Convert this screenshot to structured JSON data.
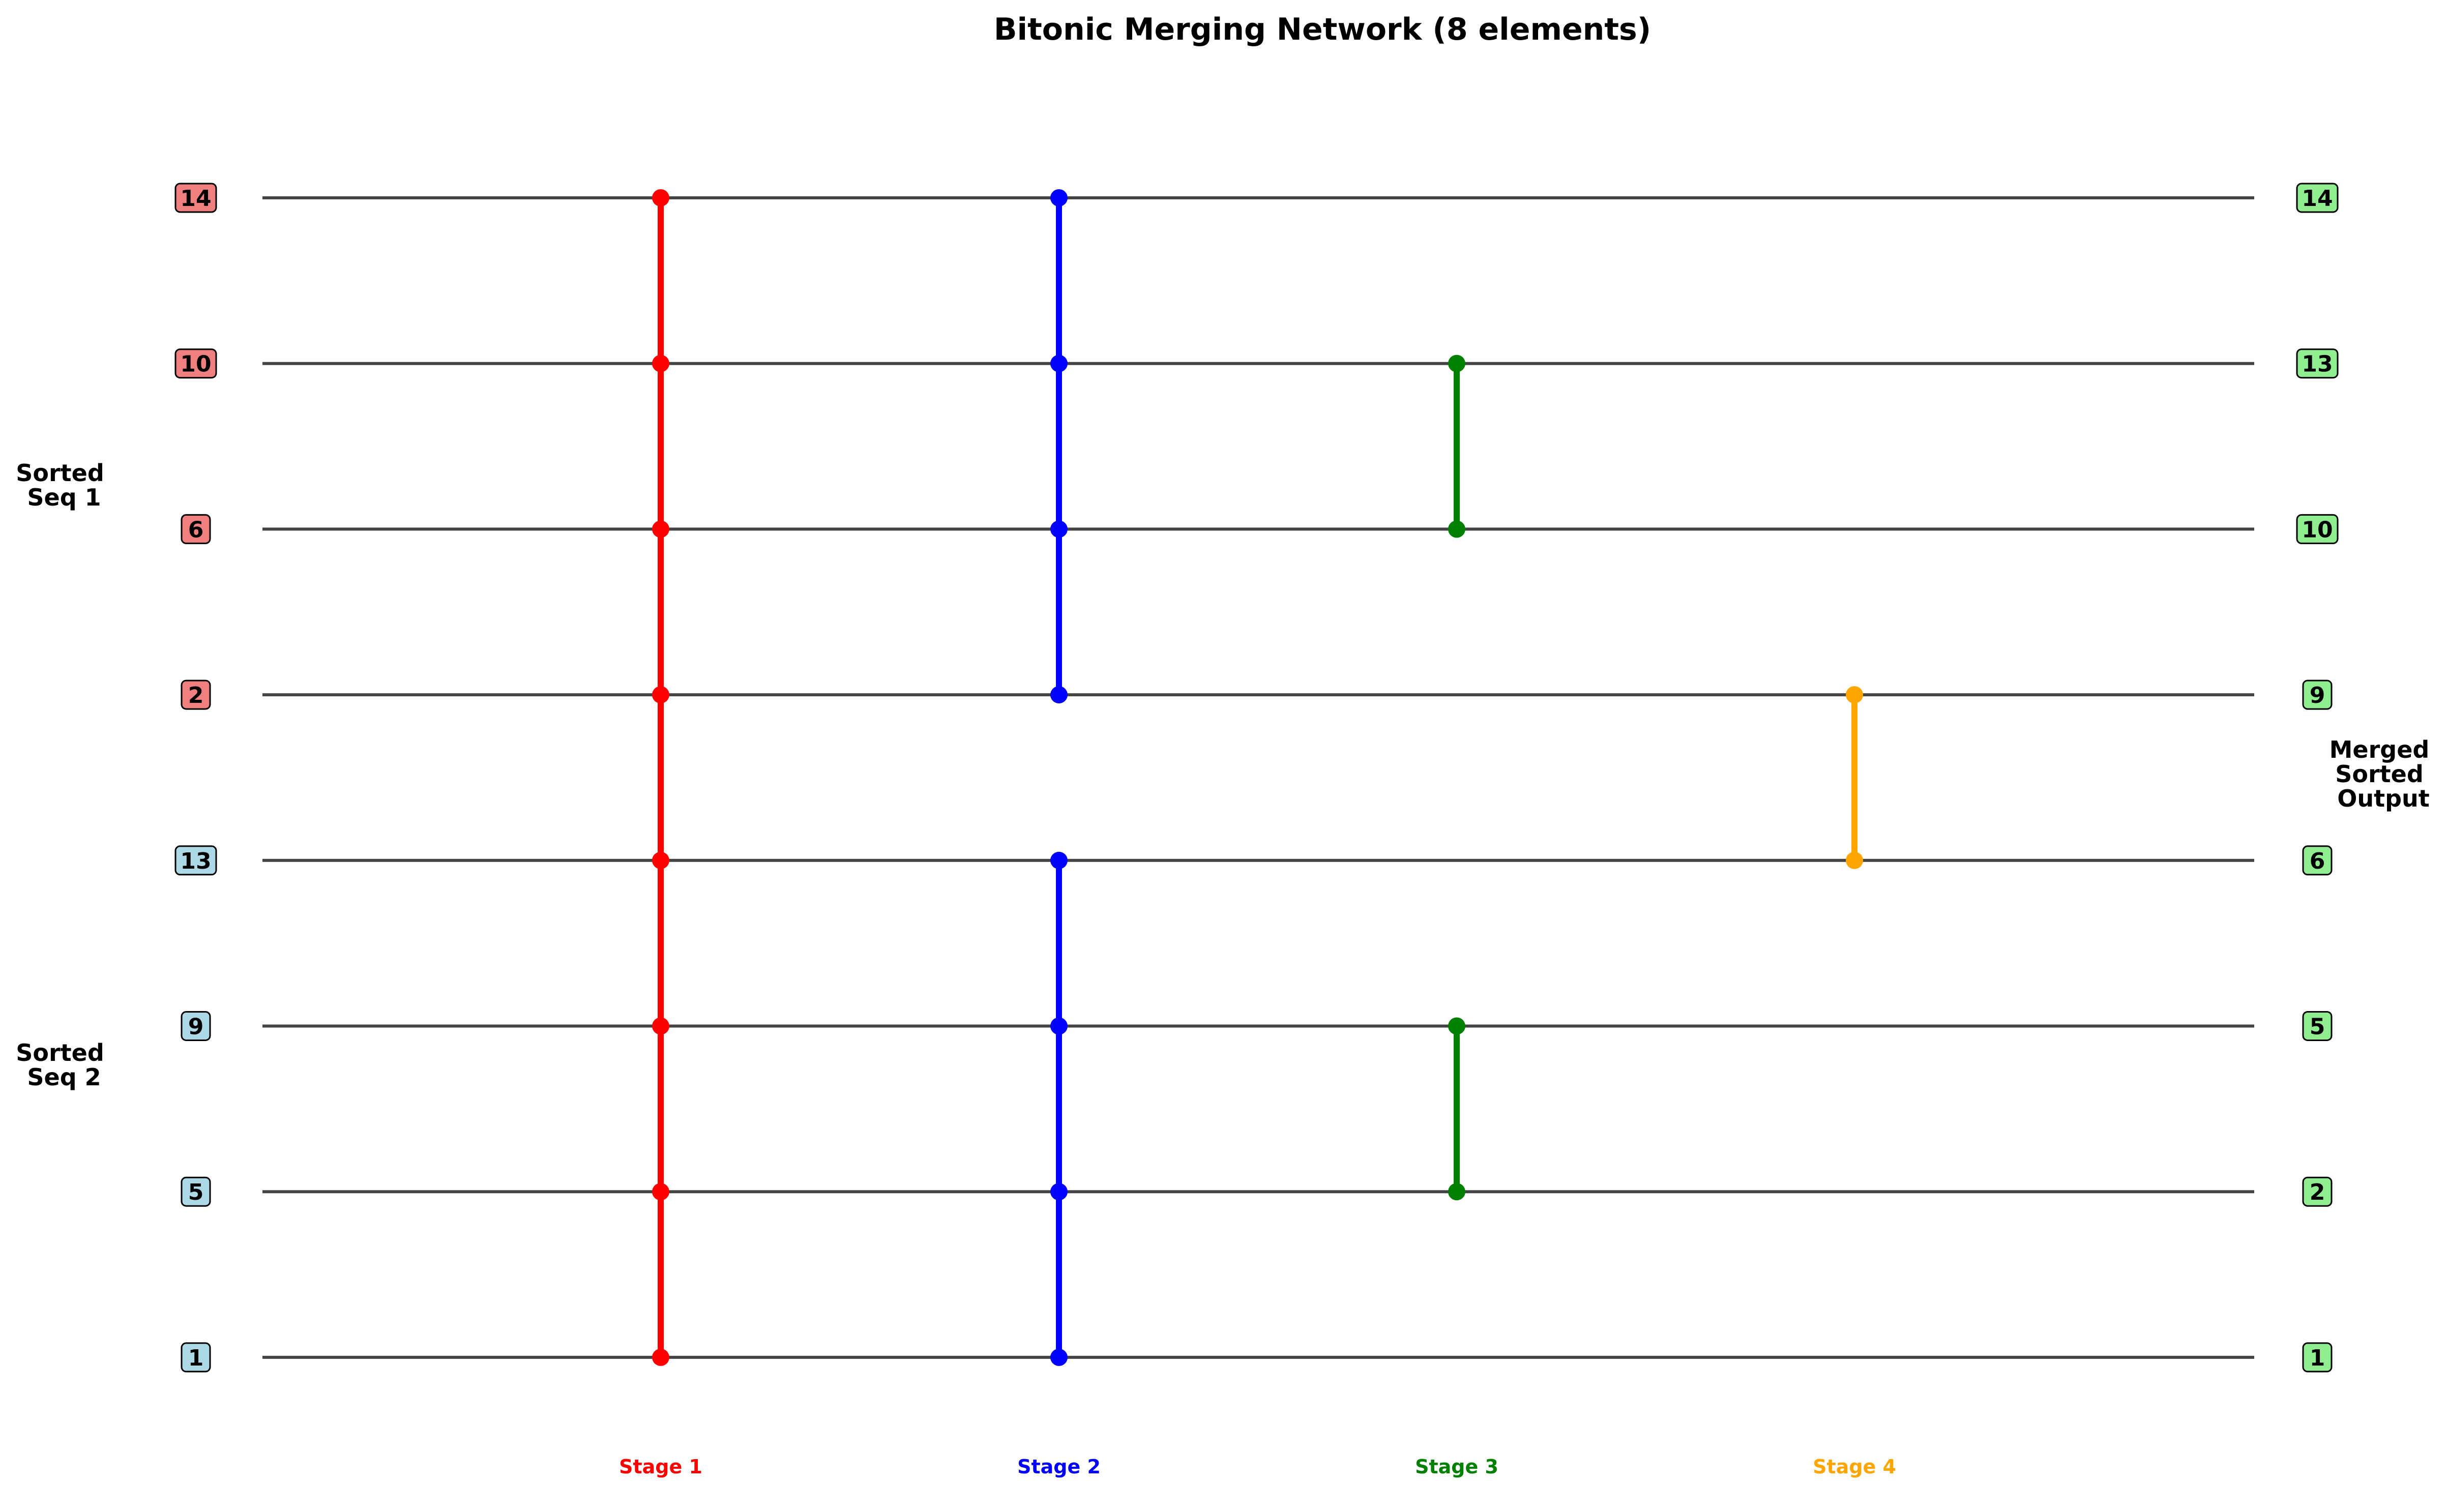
{
  "title": "Bitonic Merging Network (8 elements)",
  "input_groups": [
    {
      "label_lines": [
        "Sorted",
        "Seq 1"
      ]
    },
    {
      "label_lines": [
        "Sorted",
        "Seq 2"
      ]
    }
  ],
  "output_group": {
    "label_lines": [
      "Merged",
      "Sorted",
      "Output"
    ]
  },
  "inputs": [
    {
      "value": "14",
      "group": "seq1"
    },
    {
      "value": "10",
      "group": "seq1"
    },
    {
      "value": "6",
      "group": "seq1"
    },
    {
      "value": "2",
      "group": "seq1"
    },
    {
      "value": "13",
      "group": "seq2"
    },
    {
      "value": "9",
      "group": "seq2"
    },
    {
      "value": "5",
      "group": "seq2"
    },
    {
      "value": "1",
      "group": "seq2"
    }
  ],
  "outputs": [
    "14",
    "13",
    "10",
    "9",
    "6",
    "5",
    "2",
    "1"
  ],
  "stages": [
    {
      "label": "Stage 1",
      "color": "#ff0000",
      "segments": [
        [
          0,
          7
        ]
      ]
    },
    {
      "label": "Stage 2",
      "color": "#0000ff",
      "segments": [
        [
          0,
          3
        ],
        [
          4,
          7
        ]
      ]
    },
    {
      "label": "Stage 3",
      "color": "#008000",
      "segments": [
        [
          1,
          2
        ],
        [
          5,
          6
        ]
      ]
    },
    {
      "label": "Stage 4",
      "color": "#ffa500",
      "segments": [
        [
          3,
          4
        ]
      ]
    }
  ],
  "colors": {
    "seq1_fill": "#f08080",
    "seq2_fill": "#add8e6",
    "output_fill": "#90ee90",
    "wire": "#444444"
  }
}
